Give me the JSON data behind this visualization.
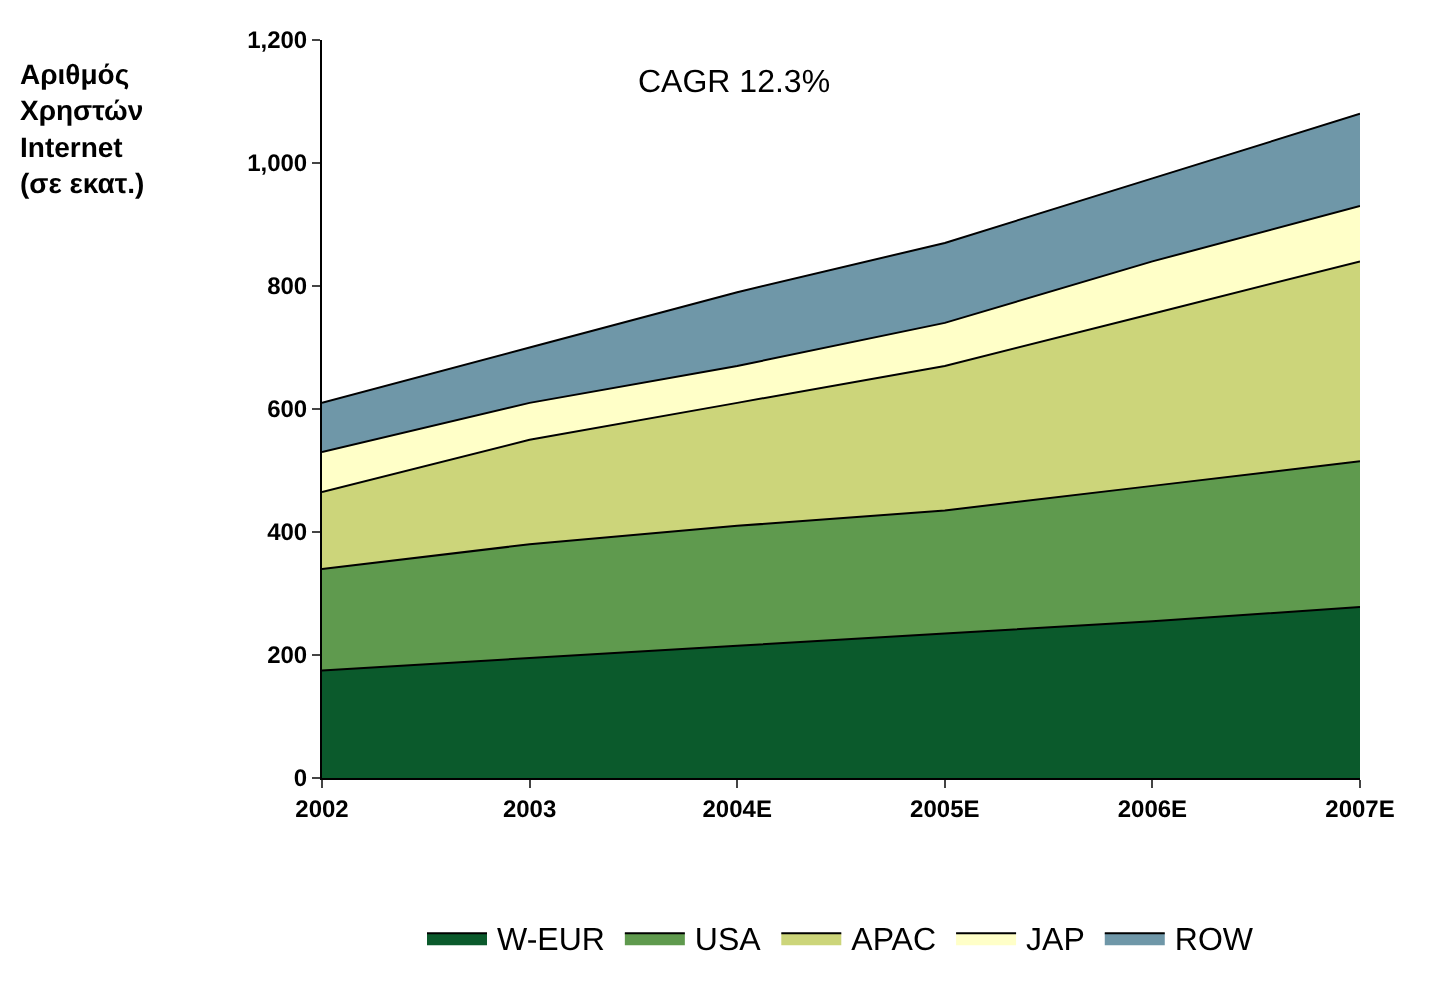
{
  "chart_data": {
    "type": "area",
    "stacked": true,
    "ylabel": "Αριθμός\nΧρηστών\nInternet\n(σε εκατ.)",
    "categories": [
      "2002",
      "2003",
      "2004E",
      "2005E",
      "2006E",
      "2007E"
    ],
    "series": [
      {
        "name": "W-EUR",
        "color": "#0b5a2c",
        "values": [
          175,
          195,
          215,
          235,
          255,
          278
        ]
      },
      {
        "name": "USA",
        "color": "#5f9a4e",
        "values": [
          165,
          185,
          195,
          200,
          220,
          237
        ]
      },
      {
        "name": "APAC",
        "color": "#ccd57a",
        "values": [
          125,
          170,
          200,
          235,
          280,
          325
        ]
      },
      {
        "name": "JAP",
        "color": "#ffffc8",
        "values": [
          65,
          60,
          60,
          70,
          85,
          90
        ]
      },
      {
        "name": "ROW",
        "color": "#6f97a8",
        "values": [
          80,
          90,
          120,
          130,
          135,
          150
        ]
      }
    ],
    "ylim": [
      0,
      1200
    ],
    "yticks": [
      0,
      200,
      400,
      600,
      800,
      {
        "value": 1000,
        "label": "1,000"
      },
      {
        "value": 1200,
        "label": "1,200"
      }
    ],
    "annotations": [
      "CAGR 12.3%"
    ],
    "grid": false,
    "legend": "bottom",
    "line_style": "solid"
  }
}
